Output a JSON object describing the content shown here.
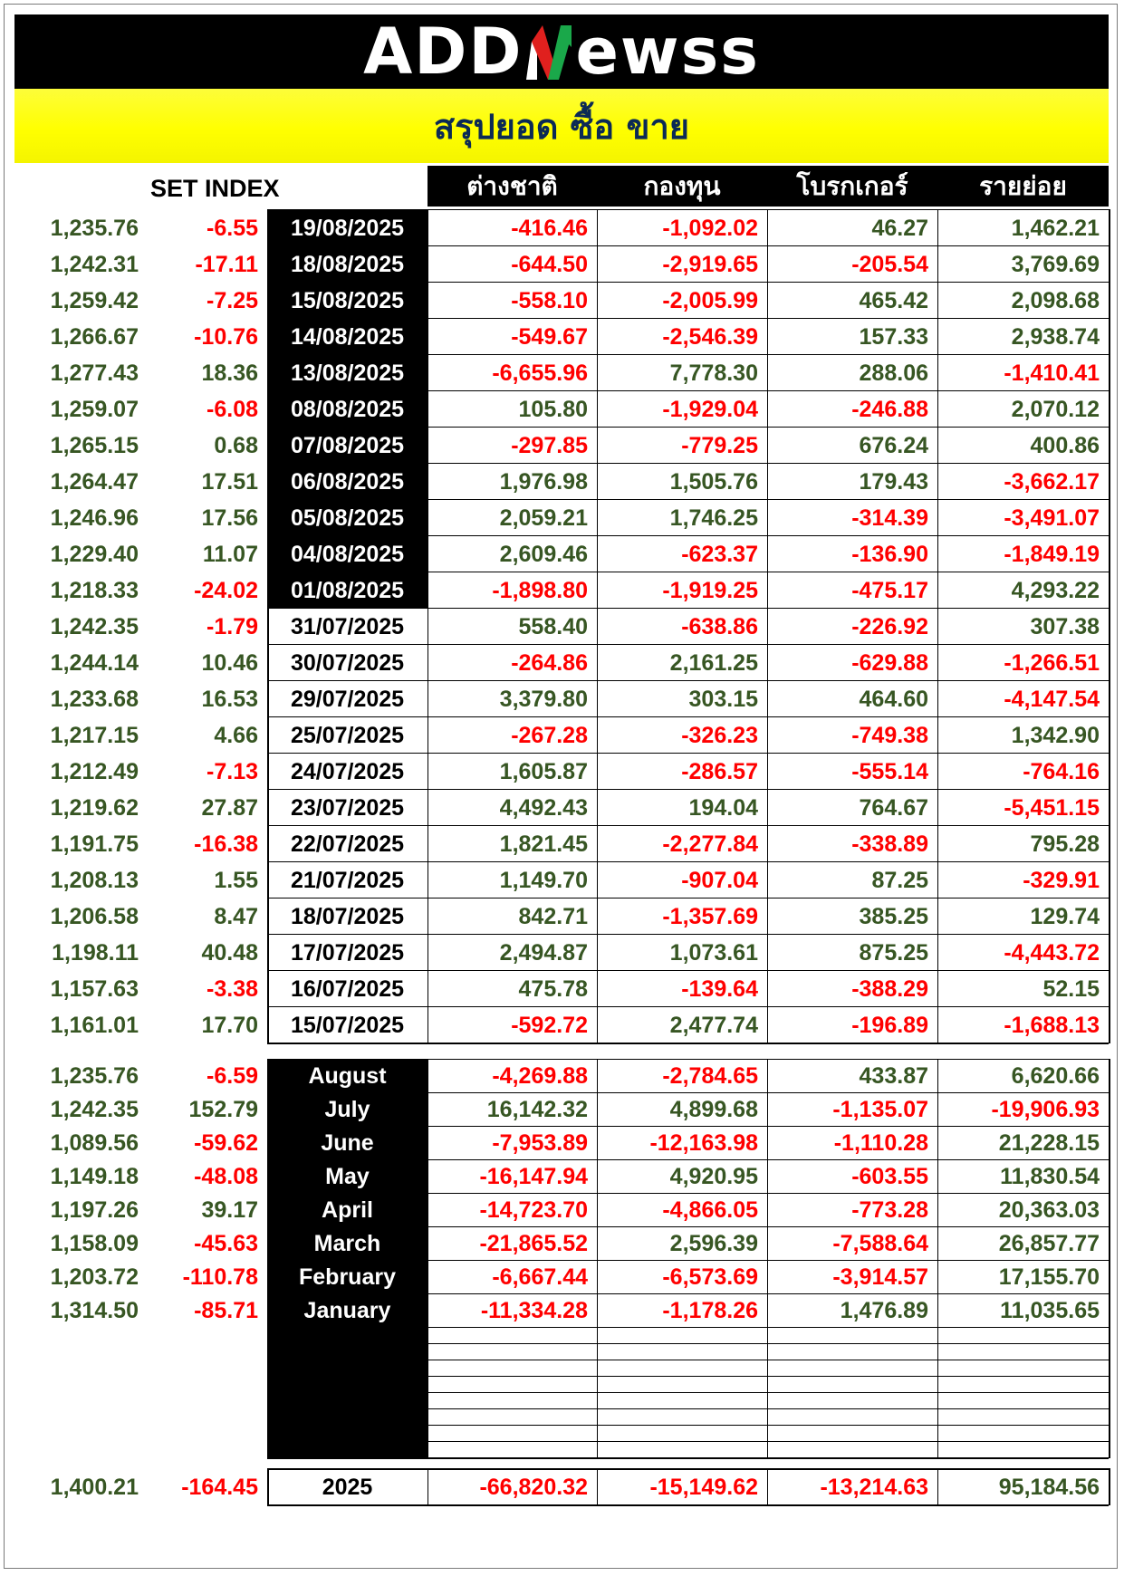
{
  "brand": {
    "logo_left": "ADD",
    "logo_right": "ewss"
  },
  "title": "สรุปยอด ซื้อ ขาย",
  "set_index_label": "SET INDEX",
  "columns": [
    "ต่างชาติ",
    "กองทุน",
    "โบรกเกอร์",
    "รายย่อย"
  ],
  "daily": [
    {
      "index": "1,235.76",
      "change": "-6.55",
      "date": "19/08/2025",
      "foreign": "-416.46",
      "fund": "-1,092.02",
      "broker": "46.27",
      "retail": "1,462.21"
    },
    {
      "index": "1,242.31",
      "change": "-17.11",
      "date": "18/08/2025",
      "foreign": "-644.50",
      "fund": "-2,919.65",
      "broker": "-205.54",
      "retail": "3,769.69"
    },
    {
      "index": "1,259.42",
      "change": "-7.25",
      "date": "15/08/2025",
      "foreign": "-558.10",
      "fund": "-2,005.99",
      "broker": "465.42",
      "retail": "2,098.68"
    },
    {
      "index": "1,266.67",
      "change": "-10.76",
      "date": "14/08/2025",
      "foreign": "-549.67",
      "fund": "-2,546.39",
      "broker": "157.33",
      "retail": "2,938.74"
    },
    {
      "index": "1,277.43",
      "change": "18.36",
      "date": "13/08/2025",
      "foreign": "-6,655.96",
      "fund": "7,778.30",
      "broker": "288.06",
      "retail": "-1,410.41"
    },
    {
      "index": "1,259.07",
      "change": "-6.08",
      "date": "08/08/2025",
      "foreign": "105.80",
      "fund": "-1,929.04",
      "broker": "-246.88",
      "retail": "2,070.12"
    },
    {
      "index": "1,265.15",
      "change": "0.68",
      "date": "07/08/2025",
      "foreign": "-297.85",
      "fund": "-779.25",
      "broker": "676.24",
      "retail": "400.86"
    },
    {
      "index": "1,264.47",
      "change": "17.51",
      "date": "06/08/2025",
      "foreign": "1,976.98",
      "fund": "1,505.76",
      "broker": "179.43",
      "retail": "-3,662.17"
    },
    {
      "index": "1,246.96",
      "change": "17.56",
      "date": "05/08/2025",
      "foreign": "2,059.21",
      "fund": "1,746.25",
      "broker": "-314.39",
      "retail": "-3,491.07"
    },
    {
      "index": "1,229.40",
      "change": "11.07",
      "date": "04/08/2025",
      "foreign": "2,609.46",
      "fund": "-623.37",
      "broker": "-136.90",
      "retail": "-1,849.19"
    },
    {
      "index": "1,218.33",
      "change": "-24.02",
      "date": "01/08/2025",
      "foreign": "-1,898.80",
      "fund": "-1,919.25",
      "broker": "-475.17",
      "retail": "4,293.22"
    },
    {
      "index": "1,242.35",
      "change": "-1.79",
      "date": "31/07/2025",
      "foreign": "558.40",
      "fund": "-638.86",
      "broker": "-226.92",
      "retail": "307.38"
    },
    {
      "index": "1,244.14",
      "change": "10.46",
      "date": "30/07/2025",
      "foreign": "-264.86",
      "fund": "2,161.25",
      "broker": "-629.88",
      "retail": "-1,266.51"
    },
    {
      "index": "1,233.68",
      "change": "16.53",
      "date": "29/07/2025",
      "foreign": "3,379.80",
      "fund": "303.15",
      "broker": "464.60",
      "retail": "-4,147.54"
    },
    {
      "index": "1,217.15",
      "change": "4.66",
      "date": "25/07/2025",
      "foreign": "-267.28",
      "fund": "-326.23",
      "broker": "-749.38",
      "retail": "1,342.90"
    },
    {
      "index": "1,212.49",
      "change": "-7.13",
      "date": "24/07/2025",
      "foreign": "1,605.87",
      "fund": "-286.57",
      "broker": "-555.14",
      "retail": "-764.16"
    },
    {
      "index": "1,219.62",
      "change": "27.87",
      "date": "23/07/2025",
      "foreign": "4,492.43",
      "fund": "194.04",
      "broker": "764.67",
      "retail": "-5,451.15"
    },
    {
      "index": "1,191.75",
      "change": "-16.38",
      "date": "22/07/2025",
      "foreign": "1,821.45",
      "fund": "-2,277.84",
      "broker": "-338.89",
      "retail": "795.28"
    },
    {
      "index": "1,208.13",
      "change": "1.55",
      "date": "21/07/2025",
      "foreign": "1,149.70",
      "fund": "-907.04",
      "broker": "87.25",
      "retail": "-329.91"
    },
    {
      "index": "1,206.58",
      "change": "8.47",
      "date": "18/07/2025",
      "foreign": "842.71",
      "fund": "-1,357.69",
      "broker": "385.25",
      "retail": "129.74"
    },
    {
      "index": "1,198.11",
      "change": "40.48",
      "date": "17/07/2025",
      "foreign": "2,494.87",
      "fund": "1,073.61",
      "broker": "875.25",
      "retail": "-4,443.72"
    },
    {
      "index": "1,157.63",
      "change": "-3.38",
      "date": "16/07/2025",
      "foreign": "475.78",
      "fund": "-139.64",
      "broker": "-388.29",
      "retail": "52.15"
    },
    {
      "index": "1,161.01",
      "change": "17.70",
      "date": "15/07/2025",
      "foreign": "-592.72",
      "fund": "2,477.74",
      "broker": "-196.89",
      "retail": "-1,688.13"
    }
  ],
  "monthly": [
    {
      "index": "1,235.76",
      "change": "-6.59",
      "month": "August",
      "foreign": "-4,269.88",
      "fund": "-2,784.65",
      "broker": "433.87",
      "retail": "6,620.66"
    },
    {
      "index": "1,242.35",
      "change": "152.79",
      "month": "July",
      "foreign": "16,142.32",
      "fund": "4,899.68",
      "broker": "-1,135.07",
      "retail": "-19,906.93"
    },
    {
      "index": "1,089.56",
      "change": "-59.62",
      "month": "June",
      "foreign": "-7,953.89",
      "fund": "-12,163.98",
      "broker": "-1,110.28",
      "retail": "21,228.15"
    },
    {
      "index": "1,149.18",
      "change": "-48.08",
      "month": "May",
      "foreign": "-16,147.94",
      "fund": "4,920.95",
      "broker": "-603.55",
      "retail": "11,830.54"
    },
    {
      "index": "1,197.26",
      "change": "39.17",
      "month": "April",
      "foreign": "-14,723.70",
      "fund": "-4,866.05",
      "broker": "-773.28",
      "retail": "20,363.03"
    },
    {
      "index": "1,158.09",
      "change": "-45.63",
      "month": "March",
      "foreign": "-21,865.52",
      "fund": "2,596.39",
      "broker": "-7,588.64",
      "retail": "26,857.77"
    },
    {
      "index": "1,203.72",
      "change": "-110.78",
      "month": "February",
      "foreign": "-6,667.44",
      "fund": "-6,573.69",
      "broker": "-3,914.57",
      "retail": "17,155.70"
    },
    {
      "index": "1,314.50",
      "change": "-85.71",
      "month": "January",
      "foreign": "-11,334.28",
      "fund": "-1,178.26",
      "broker": "1,476.89",
      "retail": "11,035.65"
    }
  ],
  "total": {
    "index": "1,400.21",
    "change": "-164.45",
    "year": "2025",
    "foreign": "-66,820.32",
    "fund": "-15,149.62",
    "broker": "-13,214.63",
    "retail": "95,184.56"
  },
  "colors": {
    "positive": "#375623",
    "negative": "#ff0000",
    "header_bg": "#000000",
    "banner_bg": "#ffff00",
    "title_color": "#0b2a55",
    "logo_accent_green": "#1aa84a",
    "logo_accent_red": "#e0201e"
  }
}
